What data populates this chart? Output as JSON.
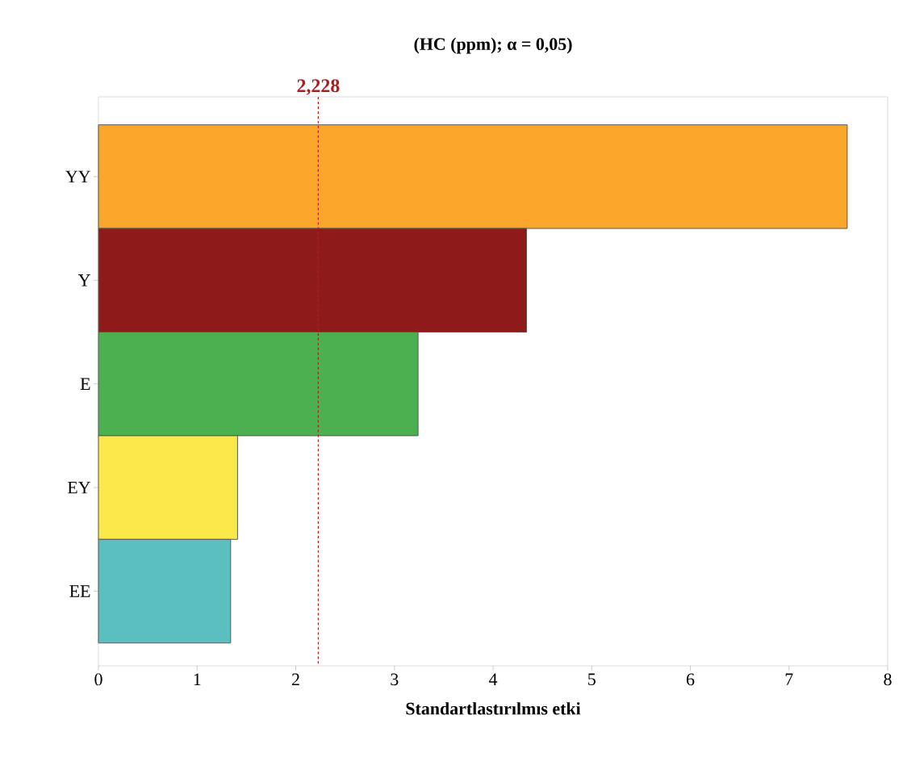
{
  "chart_data": {
    "type": "bar",
    "orientation": "horizontal",
    "title": "(HC (ppm); α = 0,05)",
    "xlabel": "Standartlastırılmıs etki",
    "categories": [
      "YY",
      "Y",
      "E",
      "EY",
      "EE"
    ],
    "values": [
      7.59,
      4.34,
      3.24,
      1.41,
      1.34
    ],
    "colors": [
      "#f9a62b",
      "#8e1a1a",
      "#4caf50",
      "#fbe94a",
      "#5bbfbf"
    ],
    "xlim": [
      0,
      8
    ],
    "xticks": [
      0,
      1,
      2,
      3,
      4,
      5,
      6,
      7,
      8
    ],
    "ref_lines": [
      {
        "axis": "x",
        "value": 2.228,
        "label": "2,228",
        "color": "#b01c1c",
        "line_style": "dashed"
      }
    ],
    "grid": false
  }
}
